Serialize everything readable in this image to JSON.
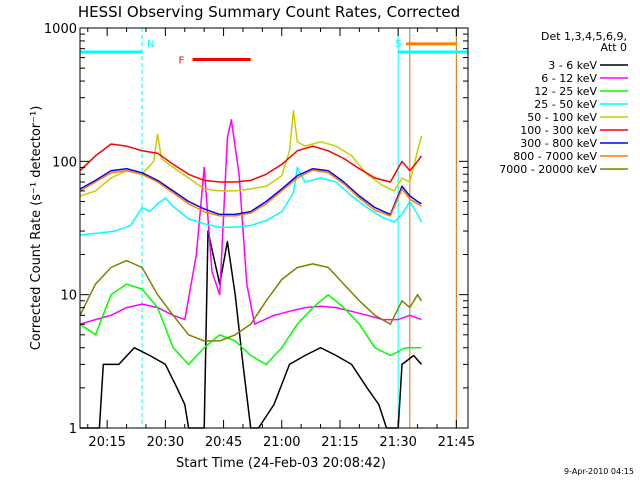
{
  "chart_data": {
    "type": "line",
    "title": "HESSI Observing Summary Count Rates, Corrected",
    "xlabel": "Start Time (24-Feb-03 20:08:42)",
    "ylabel": "Corrected Count Rate (s⁻¹ detector⁻¹)",
    "y_scale": "log",
    "ylim": [
      1,
      1000
    ],
    "y_ticks": [
      {
        "v": 1,
        "label": "1"
      },
      {
        "v": 10,
        "label": "10"
      },
      {
        "v": 100,
        "label": "100"
      },
      {
        "v": 1000,
        "label": "1000"
      }
    ],
    "xlim": [
      "20:08",
      "21:48"
    ],
    "x_ticks": [
      "20:15",
      "20:30",
      "20:45",
      "21:00",
      "21:15",
      "21:30",
      "21:45"
    ],
    "grid": false,
    "legend_position": "right",
    "legend_header": [
      "Det 1,3,4,5,6,9,",
      "Att 0"
    ],
    "footer_timestamp": "9-Apr-2010 04:15",
    "background_color": "#ffffff",
    "markers": [
      {
        "label": "N",
        "color": "#00ffff",
        "start": "20:08",
        "end": "20:24",
        "level": 660
      },
      {
        "label": "S",
        "color": "#00ffff",
        "start": "21:30",
        "end": "21:48",
        "level": 660
      }
    ],
    "flags": [
      {
        "label": "F",
        "color": "#ff0000",
        "start": "20:37",
        "end": "20:52",
        "level": 580
      },
      {
        "label": "",
        "color": "#ff7f00",
        "start": "21:32",
        "end": "21:45",
        "level": 760
      }
    ],
    "vertical_lines": [
      {
        "time": "20:08",
        "color": "#00ffff",
        "style": "solid"
      },
      {
        "time": "20:24",
        "color": "#00ffff",
        "style": "dashed"
      },
      {
        "time": "21:30",
        "color": "#00ffff",
        "style": "solid"
      },
      {
        "time": "21:33",
        "color": "#e07000",
        "style": "solid"
      },
      {
        "time": "21:45",
        "color": "#00ffff",
        "style": "dashed"
      },
      {
        "time": "21:45",
        "color": "#e07000",
        "style": "solid"
      }
    ],
    "series": [
      {
        "name": "3 - 6 keV",
        "color": "#000000",
        "points": [
          [
            "20:08",
            1
          ],
          [
            "20:13",
            1
          ],
          [
            "20:14",
            3
          ],
          [
            "20:18",
            3
          ],
          [
            "20:22",
            4
          ],
          [
            "20:26",
            3.5
          ],
          [
            "20:30",
            3
          ],
          [
            "20:33",
            2
          ],
          [
            "20:35",
            1.5
          ],
          [
            "20:36",
            1
          ],
          [
            "20:40",
            1
          ],
          [
            "20:41",
            30
          ],
          [
            "20:42",
            22
          ],
          [
            "20:44",
            12
          ],
          [
            "20:46",
            25
          ],
          [
            "20:48",
            10
          ],
          [
            "20:50",
            3
          ],
          [
            "20:52",
            1
          ],
          [
            "20:54",
            1
          ],
          [
            "20:58",
            1.5
          ],
          [
            "21:02",
            3
          ],
          [
            "21:06",
            3.5
          ],
          [
            "21:10",
            4
          ],
          [
            "21:14",
            3.5
          ],
          [
            "21:18",
            3
          ],
          [
            "21:22",
            2
          ],
          [
            "21:25",
            1.5
          ],
          [
            "21:27",
            1
          ],
          [
            "21:30",
            1
          ],
          [
            "21:31",
            3
          ],
          [
            "21:34",
            3.5
          ],
          [
            "21:36",
            3
          ]
        ]
      },
      {
        "name": "6 - 12 keV",
        "color": "#ff00ff",
        "points": [
          [
            "20:08",
            6
          ],
          [
            "20:12",
            6.5
          ],
          [
            "20:16",
            7
          ],
          [
            "20:20",
            8
          ],
          [
            "20:24",
            8.5
          ],
          [
            "20:28",
            8
          ],
          [
            "20:32",
            7
          ],
          [
            "20:35",
            6.5
          ],
          [
            "20:38",
            20
          ],
          [
            "20:40",
            90
          ],
          [
            "20:42",
            15
          ],
          [
            "20:44",
            10
          ],
          [
            "20:46",
            150
          ],
          [
            "20:47",
            205
          ],
          [
            "20:49",
            80
          ],
          [
            "20:51",
            12
          ],
          [
            "20:53",
            6
          ],
          [
            "20:58",
            7
          ],
          [
            "21:02",
            7.5
          ],
          [
            "21:06",
            8
          ],
          [
            "21:10",
            8.2
          ],
          [
            "21:14",
            8
          ],
          [
            "21:18",
            7.5
          ],
          [
            "21:22",
            7
          ],
          [
            "21:26",
            6.5
          ],
          [
            "21:30",
            6.5
          ],
          [
            "21:33",
            7
          ],
          [
            "21:36",
            6.5
          ]
        ]
      },
      {
        "name": "12 - 25 keV",
        "color": "#00ff00",
        "points": [
          [
            "20:08",
            6
          ],
          [
            "20:12",
            5
          ],
          [
            "20:16",
            10
          ],
          [
            "20:20",
            12
          ],
          [
            "20:24",
            11
          ],
          [
            "20:28",
            8
          ],
          [
            "20:32",
            4
          ],
          [
            "20:36",
            3
          ],
          [
            "20:40",
            4
          ],
          [
            "20:44",
            5
          ],
          [
            "20:48",
            4.5
          ],
          [
            "20:52",
            3.5
          ],
          [
            "20:56",
            3
          ],
          [
            "21:00",
            4
          ],
          [
            "21:04",
            6
          ],
          [
            "21:08",
            8
          ],
          [
            "21:12",
            10
          ],
          [
            "21:16",
            8
          ],
          [
            "21:20",
            6
          ],
          [
            "21:24",
            4
          ],
          [
            "21:28",
            3.5
          ],
          [
            "21:32",
            4
          ],
          [
            "21:36",
            4
          ]
        ]
      },
      {
        "name": "25 - 50 keV",
        "color": "#00ffff",
        "points": [
          [
            "20:08",
            28
          ],
          [
            "20:13",
            29
          ],
          [
            "20:17",
            30
          ],
          [
            "20:21",
            33
          ],
          [
            "20:24",
            45
          ],
          [
            "20:26",
            42
          ],
          [
            "20:28",
            48
          ],
          [
            "20:30",
            53
          ],
          [
            "20:32",
            46
          ],
          [
            "20:36",
            37
          ],
          [
            "20:40",
            34
          ],
          [
            "20:44",
            32
          ],
          [
            "20:48",
            32
          ],
          [
            "20:52",
            33
          ],
          [
            "20:56",
            36
          ],
          [
            "21:00",
            42
          ],
          [
            "21:03",
            58
          ],
          [
            "21:04",
            90
          ],
          [
            "21:06",
            70
          ],
          [
            "21:10",
            75
          ],
          [
            "21:14",
            70
          ],
          [
            "21:18",
            55
          ],
          [
            "21:22",
            45
          ],
          [
            "21:26",
            38
          ],
          [
            "21:29",
            35
          ],
          [
            "21:31",
            40
          ],
          [
            "21:33",
            50
          ],
          [
            "21:35",
            40
          ],
          [
            "21:36",
            35
          ]
        ]
      },
      {
        "name": "50 - 100 keV",
        "color": "#cccc00",
        "points": [
          [
            "20:08",
            55
          ],
          [
            "20:12",
            60
          ],
          [
            "20:16",
            75
          ],
          [
            "20:20",
            85
          ],
          [
            "20:24",
            80
          ],
          [
            "20:27",
            100
          ],
          [
            "20:28",
            160
          ],
          [
            "20:29",
            105
          ],
          [
            "20:32",
            90
          ],
          [
            "20:36",
            75
          ],
          [
            "20:40",
            62
          ],
          [
            "20:44",
            60
          ],
          [
            "20:48",
            60
          ],
          [
            "20:52",
            62
          ],
          [
            "20:56",
            65
          ],
          [
            "21:00",
            78
          ],
          [
            "21:02",
            120
          ],
          [
            "21:03",
            240
          ],
          [
            "21:04",
            140
          ],
          [
            "21:06",
            130
          ],
          [
            "21:10",
            140
          ],
          [
            "21:14",
            130
          ],
          [
            "21:18",
            110
          ],
          [
            "21:22",
            80
          ],
          [
            "21:26",
            66
          ],
          [
            "21:29",
            60
          ],
          [
            "21:31",
            75
          ],
          [
            "21:33",
            70
          ],
          [
            "21:35",
            120
          ],
          [
            "21:36",
            155
          ]
        ]
      },
      {
        "name": "100 - 300 keV",
        "color": "#ff0000",
        "points": [
          [
            "20:08",
            85
          ],
          [
            "20:12",
            110
          ],
          [
            "20:16",
            135
          ],
          [
            "20:20",
            130
          ],
          [
            "20:24",
            120
          ],
          [
            "20:28",
            115
          ],
          [
            "20:32",
            95
          ],
          [
            "20:36",
            80
          ],
          [
            "20:40",
            72
          ],
          [
            "20:44",
            70
          ],
          [
            "20:48",
            70
          ],
          [
            "20:52",
            72
          ],
          [
            "20:56",
            80
          ],
          [
            "21:00",
            95
          ],
          [
            "21:04",
            120
          ],
          [
            "21:08",
            130
          ],
          [
            "21:12",
            120
          ],
          [
            "21:16",
            105
          ],
          [
            "21:20",
            88
          ],
          [
            "21:24",
            75
          ],
          [
            "21:28",
            70
          ],
          [
            "21:31",
            100
          ],
          [
            "21:33",
            85
          ],
          [
            "21:35",
            100
          ],
          [
            "21:36",
            110
          ]
        ]
      },
      {
        "name": "300 - 800 keV",
        "color": "#0000ff",
        "points": [
          [
            "20:08",
            62
          ],
          [
            "20:12",
            72
          ],
          [
            "20:16",
            85
          ],
          [
            "20:20",
            88
          ],
          [
            "20:24",
            82
          ],
          [
            "20:28",
            72
          ],
          [
            "20:32",
            60
          ],
          [
            "20:36",
            50
          ],
          [
            "20:40",
            44
          ],
          [
            "20:44",
            40
          ],
          [
            "20:48",
            40
          ],
          [
            "20:52",
            42
          ],
          [
            "20:56",
            50
          ],
          [
            "21:00",
            62
          ],
          [
            "21:04",
            78
          ],
          [
            "21:08",
            88
          ],
          [
            "21:12",
            85
          ],
          [
            "21:16",
            70
          ],
          [
            "21:20",
            55
          ],
          [
            "21:24",
            45
          ],
          [
            "21:28",
            40
          ],
          [
            "21:31",
            65
          ],
          [
            "21:33",
            55
          ],
          [
            "21:35",
            50
          ],
          [
            "21:36",
            48
          ]
        ]
      },
      {
        "name": "800 - 7000 keV",
        "color": "#ff7f00",
        "points": [
          [
            "20:08",
            60
          ],
          [
            "20:12",
            70
          ],
          [
            "20:16",
            82
          ],
          [
            "20:20",
            85
          ],
          [
            "20:24",
            80
          ],
          [
            "20:28",
            70
          ],
          [
            "20:32",
            58
          ],
          [
            "20:36",
            48
          ],
          [
            "20:40",
            42
          ],
          [
            "20:44",
            39
          ],
          [
            "20:48",
            39
          ],
          [
            "20:52",
            41
          ],
          [
            "20:56",
            48
          ],
          [
            "21:00",
            60
          ],
          [
            "21:04",
            75
          ],
          [
            "21:08",
            86
          ],
          [
            "21:12",
            82
          ],
          [
            "21:16",
            68
          ],
          [
            "21:20",
            53
          ],
          [
            "21:24",
            43
          ],
          [
            "21:28",
            39
          ],
          [
            "21:31",
            62
          ],
          [
            "21:33",
            52
          ],
          [
            "21:35",
            48
          ],
          [
            "21:36",
            46
          ]
        ]
      },
      {
        "name": "7000 - 20000 keV",
        "color": "#808000",
        "points": [
          [
            "20:08",
            7
          ],
          [
            "20:12",
            12
          ],
          [
            "20:16",
            16
          ],
          [
            "20:20",
            18
          ],
          [
            "20:24",
            16
          ],
          [
            "20:28",
            10
          ],
          [
            "20:32",
            7
          ],
          [
            "20:36",
            5
          ],
          [
            "20:40",
            4.5
          ],
          [
            "20:44",
            4.5
          ],
          [
            "20:48",
            5
          ],
          [
            "20:52",
            6
          ],
          [
            "20:56",
            9
          ],
          [
            "21:00",
            13
          ],
          [
            "21:04",
            16
          ],
          [
            "21:08",
            17
          ],
          [
            "21:12",
            16
          ],
          [
            "21:16",
            12
          ],
          [
            "21:20",
            9
          ],
          [
            "21:24",
            7
          ],
          [
            "21:28",
            6
          ],
          [
            "21:31",
            9
          ],
          [
            "21:33",
            8
          ],
          [
            "21:35",
            10
          ],
          [
            "21:36",
            9
          ]
        ]
      }
    ]
  }
}
